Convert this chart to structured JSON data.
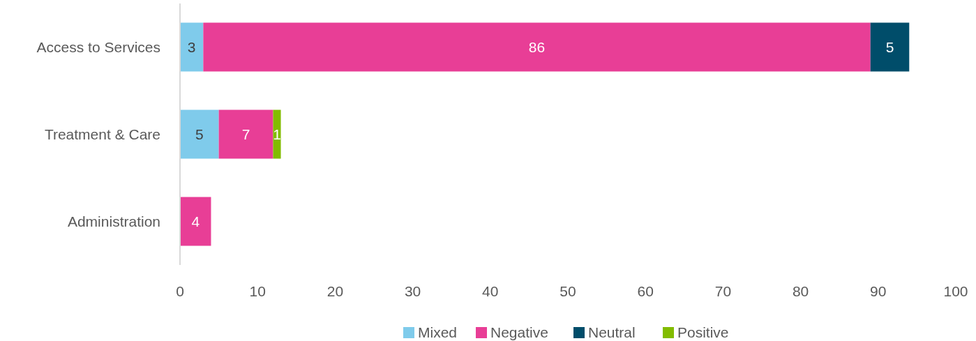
{
  "chart_data": {
    "type": "bar",
    "orientation": "horizontal",
    "stacked": true,
    "categories": [
      "Access to Services",
      "Treatment & Care",
      "Administration"
    ],
    "series": [
      {
        "name": "Mixed",
        "color": "#7fcbeb",
        "values": [
          3,
          5,
          null
        ]
      },
      {
        "name": "Negative",
        "color": "#e83e96",
        "values": [
          86,
          7,
          4
        ]
      },
      {
        "name": "Neutral",
        "color": "#004d6a",
        "values": [
          5,
          null,
          null
        ]
      },
      {
        "name": "Positive",
        "color": "#82bc00",
        "values": [
          null,
          1,
          null
        ]
      }
    ],
    "xlim": [
      0,
      100
    ],
    "xticks": [
      0,
      10,
      20,
      30,
      40,
      50,
      60,
      70,
      80,
      90,
      100
    ],
    "data_labels": true,
    "legend": "bottom"
  }
}
